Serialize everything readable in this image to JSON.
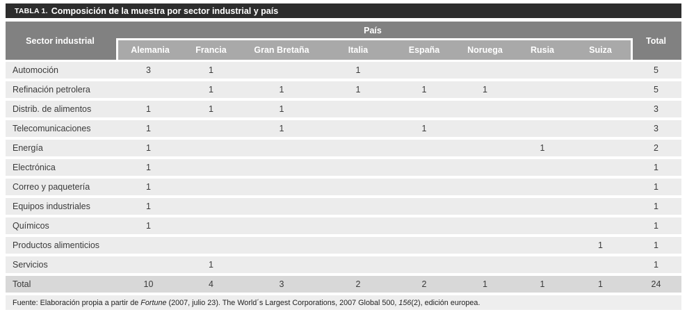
{
  "title": {
    "label": "TABLA 1.",
    "text": "Composición de la muestra por sector industrial y país"
  },
  "header": {
    "sector_col": "Sector industrial",
    "country_group": "País",
    "countries": [
      "Alemania",
      "Francia",
      "Gran Bretaña",
      "Italia",
      "España",
      "Noruega",
      "Rusia",
      "Suiza"
    ],
    "total_col": "Total"
  },
  "rows": [
    {
      "sector": "Automoción",
      "values": [
        "3",
        "1",
        "",
        "1",
        "",
        "",
        "",
        ""
      ],
      "total": "5"
    },
    {
      "sector": "Refinación petrolera",
      "values": [
        "",
        "1",
        "1",
        "1",
        "1",
        "1",
        "",
        ""
      ],
      "total": "5"
    },
    {
      "sector": "Distrib. de alimentos",
      "values": [
        "1",
        "1",
        "1",
        "",
        "",
        "",
        "",
        ""
      ],
      "total": "3"
    },
    {
      "sector": "Telecomunicaciones",
      "values": [
        "1",
        "",
        "1",
        "",
        "1",
        "",
        "",
        ""
      ],
      "total": "3"
    },
    {
      "sector": "Energía",
      "values": [
        "1",
        "",
        "",
        "",
        "",
        "",
        "1",
        ""
      ],
      "total": "2"
    },
    {
      "sector": "Electrónica",
      "values": [
        "1",
        "",
        "",
        "",
        "",
        "",
        "",
        ""
      ],
      "total": "1"
    },
    {
      "sector": "Correo y paquetería",
      "values": [
        "1",
        "",
        "",
        "",
        "",
        "",
        "",
        ""
      ],
      "total": "1"
    },
    {
      "sector": "Equipos industriales",
      "values": [
        "1",
        "",
        "",
        "",
        "",
        "",
        "",
        ""
      ],
      "total": "1"
    },
    {
      "sector": "Químicos",
      "values": [
        "1",
        "",
        "",
        "",
        "",
        "",
        "",
        ""
      ],
      "total": "1"
    },
    {
      "sector": "Productos alimenticios",
      "values": [
        "",
        "",
        "",
        "",
        "",
        "",
        "",
        "1"
      ],
      "total": "1"
    },
    {
      "sector": "Servicios",
      "values": [
        "",
        "1",
        "",
        "",
        "",
        "",
        "",
        ""
      ],
      "total": "1"
    }
  ],
  "total_row": {
    "sector": "Total",
    "values": [
      "10",
      "4",
      "3",
      "2",
      "2",
      "1",
      "1",
      "1"
    ],
    "total": "24"
  },
  "footer": {
    "prefix": "Fuente: Elaboración propia a partir de ",
    "italic1": "Fortune",
    "middle": " (2007, julio 23). The World´s Largest Corporations, 2007 Global 500, ",
    "italic2": "156",
    "suffix": "(2), edición europea."
  },
  "colors": {
    "title_bar": "#2d2d2d",
    "header_dark": "#818181",
    "header_light": "#a9a9a9",
    "row_bg": "#ececec",
    "total_row_bg": "#d8d8d8",
    "footer_bg": "#eeeeee"
  }
}
